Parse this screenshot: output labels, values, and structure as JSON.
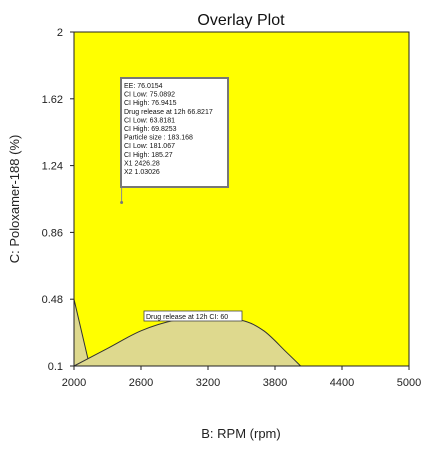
{
  "chart_data": {
    "type": "contour",
    "title": "Overlay Plot",
    "xlabel": "B: RPM (rpm)",
    "ylabel": "C: Poloxamer-188 (%)",
    "xlim": [
      2000,
      5000
    ],
    "ylim": [
      0.1,
      2
    ],
    "xticks": [
      "2000",
      "2600",
      "3200",
      "3800",
      "4400",
      "5000"
    ],
    "yticks": [
      "0.1",
      "0.48",
      "0.86",
      "1.24",
      "1.62",
      "2"
    ],
    "colors": {
      "feasible": "#ffff00",
      "infeasible": "#ded98e",
      "plot_border": "#222222",
      "curve": "#333333",
      "flag_line": "#8a8a8a"
    },
    "regions": {
      "curve_label": "Drug release at 12h CI: 60",
      "left_boundary": [
        [
          2000,
          0.48
        ],
        [
          2140,
          0.1
        ]
      ],
      "dome_boundary": [
        [
          2000,
          0.1
        ],
        [
          2300,
          0.2
        ],
        [
          2600,
          0.3
        ],
        [
          2900,
          0.36
        ],
        [
          3200,
          0.38
        ],
        [
          3500,
          0.36
        ],
        [
          3700,
          0.3
        ],
        [
          3900,
          0.18
        ],
        [
          4030,
          0.1
        ]
      ]
    },
    "flag": {
      "point": [
        2426.28,
        1.03026
      ],
      "lines": [
        "EE:  76.0154",
        "   CI Low:   75.0892",
        "   CI High:   76.9415",
        "Drug release at 12h   66.8217",
        "   CI Low:   63.8181",
        "   CI High:   69.8253",
        "Particle size :   183.168",
        "   CI Low:   181.067",
        "   CI High:   185.27",
        "X1   2426.28",
        "X2   1.03026"
      ]
    }
  }
}
